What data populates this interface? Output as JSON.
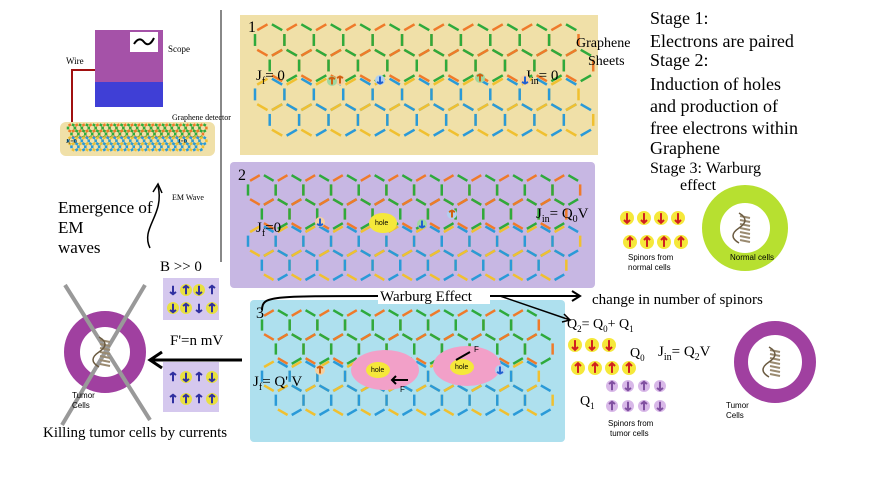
{
  "scope": {
    "scope": "Scope",
    "wire": "Wire",
    "detector": "Graphene detector",
    "jf": "J(=0",
    "jin": "J=0"
  },
  "em": {
    "wave": "EM Wave",
    "emergence": [
      "Emergence of",
      "EM",
      "waves"
    ]
  },
  "panel1": {
    "num": "1",
    "jf": [
      "J",
      "f",
      "= 0"
    ],
    "jin": [
      "J",
      "in",
      "= 0"
    ],
    "sheets": [
      "Graphene",
      "Sheets"
    ]
  },
  "panel2": {
    "num": "2",
    "jf": [
      "J",
      "f",
      "=0"
    ],
    "hole": "hole",
    "jin": [
      "J",
      "in",
      "= Q",
      "0",
      "V"
    ]
  },
  "panel3": {
    "num": "3",
    "holes": [
      "hole",
      "hole"
    ],
    "forces": [
      "F",
      "F"
    ],
    "jf": [
      "J",
      "f",
      "= Q' V"
    ]
  },
  "stages": [
    "Stage 1:",
    "Electrons are paired",
    "Stage 2:",
    "Induction of holes",
    "and production of",
    "free electrons within",
    "Graphene",
    "Stage 3: Warburg",
    "effect"
  ],
  "normal": {
    "spinors": [
      "Spinors from",
      "normal cells"
    ],
    "cells": "Normal cells"
  },
  "warburg": {
    "effect": "Warburg Effect",
    "change": "change in number of spinors"
  },
  "charges": {
    "q2": [
      "Q",
      "2",
      "= Q",
      "0",
      "+ Q",
      "1"
    ],
    "q0": [
      "Q",
      "0"
    ],
    "jin": [
      "J",
      "in",
      "= Q",
      "2",
      "V"
    ],
    "q1": [
      "Q",
      "1"
    ],
    "tumor_spinors": [
      "Spinors from",
      "tumor cells"
    ]
  },
  "tumor_right": [
    "Tumor",
    "Cells"
  ],
  "left": {
    "b": "B >> 0",
    "force": "F'=n mV",
    "tumor": [
      "Tumor",
      "Cells"
    ],
    "killing": "Killing tumor cells by currents"
  }
}
